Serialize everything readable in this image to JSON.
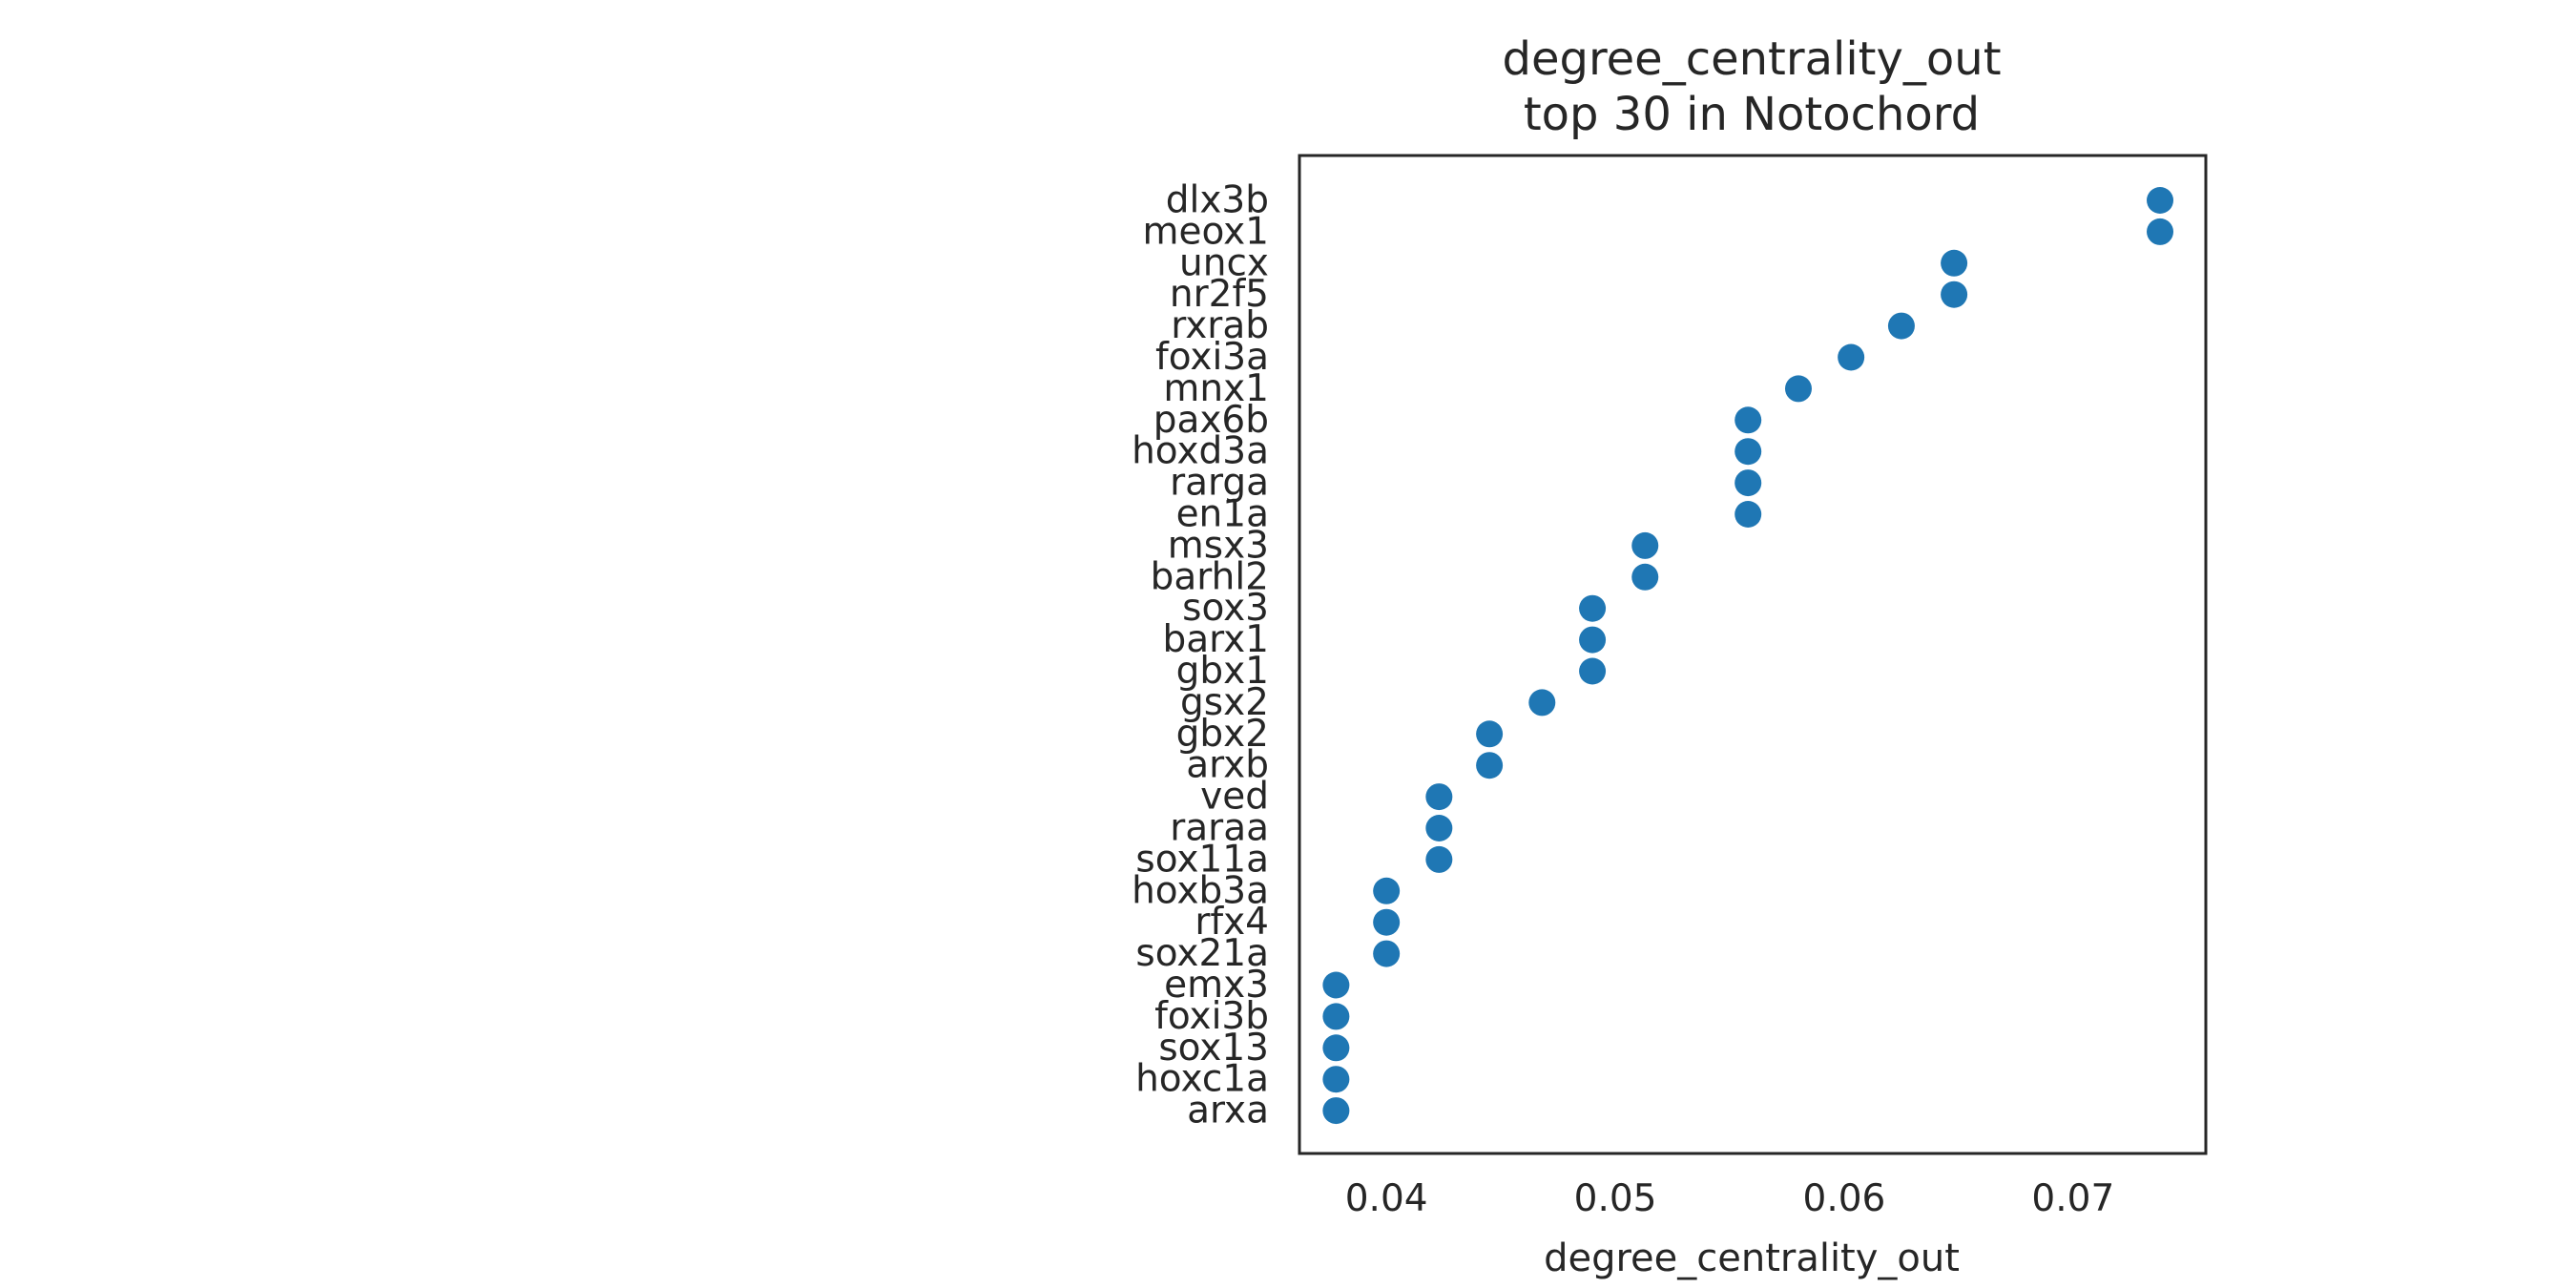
{
  "chart_data": {
    "type": "scatter",
    "title_lines": [
      "degree_centrality_out",
      "top 30 in Notochord"
    ],
    "xlabel": "degree_centrality_out",
    "ylabel": "",
    "xlim": [
      0.0362,
      0.0758
    ],
    "xticks": [
      0.04,
      0.05,
      0.06,
      0.07
    ],
    "xtick_labels": [
      "0.04",
      "0.05",
      "0.06",
      "0.07"
    ],
    "grid": false,
    "legend": "none",
    "marker_color": "#1f77b4",
    "categories": [
      "dlx3b",
      "meox1",
      "uncx",
      "nr2f5",
      "rxrab",
      "foxi3a",
      "mnx1",
      "pax6b",
      "hoxd3a",
      "rarga",
      "en1a",
      "msx3",
      "barhl2",
      "sox3",
      "barx1",
      "gbx1",
      "gsx2",
      "gbx2",
      "arxb",
      "ved",
      "raraa",
      "sox11a",
      "hoxb3a",
      "rfx4",
      "sox21a",
      "emx3",
      "foxi3b",
      "sox13",
      "hoxc1a",
      "arxa"
    ],
    "values": [
      0.0738,
      0.0738,
      0.0648,
      0.0648,
      0.0625,
      0.0603,
      0.058,
      0.0558,
      0.0558,
      0.0558,
      0.0558,
      0.0513,
      0.0513,
      0.049,
      0.049,
      0.049,
      0.0468,
      0.0445,
      0.0445,
      0.0423,
      0.0423,
      0.0423,
      0.04,
      0.04,
      0.04,
      0.0378,
      0.0378,
      0.0378,
      0.0378,
      0.0378
    ]
  }
}
